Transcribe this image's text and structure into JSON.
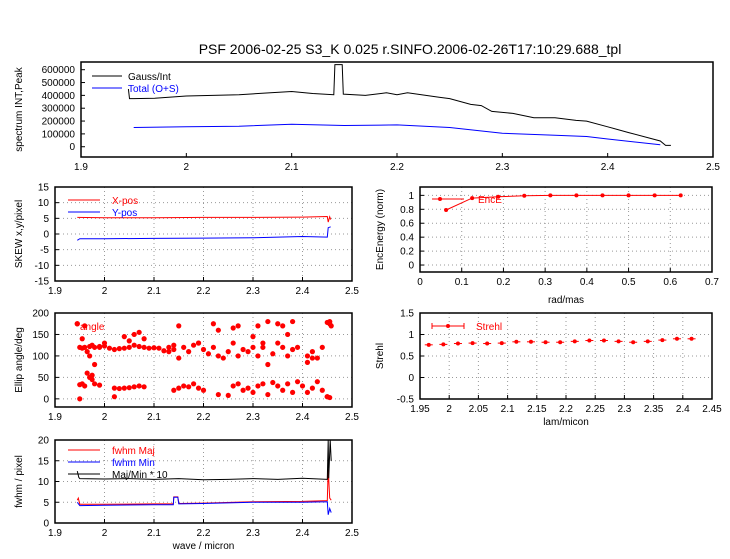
{
  "title": "PSF 2006-02-25 S3_K 0.025 r.SINFO.2006-02-26T17:10:29.688_tpl",
  "chart_data": [
    {
      "type": "line",
      "title": "",
      "xlabel": "",
      "ylabel": "spectrum INT,Peak",
      "xlim": [
        1.9,
        2.5
      ],
      "ylim": [
        -80000,
        660000
      ],
      "xticks": [
        "1.9",
        "2",
        "2.1",
        "2.2",
        "2.3",
        "2.4",
        "2.5"
      ],
      "yticks": [
        "0",
        "100000",
        "200000",
        "300000",
        "400000",
        "500000",
        "600000"
      ],
      "grid": false,
      "legend": "top-left",
      "series": [
        {
          "name": "Gauss/Int",
          "color": "#000000",
          "style": "line",
          "x": [
            1.945,
            1.946,
            1.95,
            1.97,
            2.0,
            2.05,
            2.08,
            2.1,
            2.12,
            2.14,
            2.141,
            2.148,
            2.149,
            2.17,
            2.19,
            2.2,
            2.21,
            2.24,
            2.25,
            2.27,
            2.28,
            2.29,
            2.31,
            2.33,
            2.35,
            2.37,
            2.38,
            2.4,
            2.42,
            2.45,
            2.455,
            2.46
          ],
          "y": [
            450000,
            375000,
            375000,
            378000,
            395000,
            405000,
            420000,
            430000,
            415000,
            405000,
            640000,
            640000,
            410000,
            400000,
            420000,
            405000,
            420000,
            385000,
            375000,
            330000,
            320000,
            275000,
            260000,
            225000,
            225000,
            205000,
            200000,
            155000,
            110000,
            45000,
            10000,
            10000
          ]
        },
        {
          "name": "Total (O+S)",
          "color": "#0000ff",
          "style": "line",
          "x": [
            1.95,
            2.0,
            2.05,
            2.1,
            2.15,
            2.2,
            2.25,
            2.3,
            2.35,
            2.38,
            2.4,
            2.45
          ],
          "y": [
            150000,
            155000,
            160000,
            175000,
            165000,
            170000,
            150000,
            105000,
            90000,
            80000,
            60000,
            15000
          ]
        }
      ]
    },
    {
      "type": "line",
      "xlabel": "",
      "ylabel": "SKEW x,y/pixel",
      "xlim": [
        1.9,
        2.5
      ],
      "ylim": [
        -15,
        15
      ],
      "xticks": [
        "1.9",
        "2",
        "2.1",
        "2.2",
        "2.3",
        "2.4",
        "2.5"
      ],
      "yticks": [
        "-15",
        "-10",
        "-5",
        "0",
        "5",
        "10",
        "15"
      ],
      "grid": true,
      "legend": "top-left",
      "series": [
        {
          "name": "X-pos",
          "color": "#ff0000",
          "style": "line",
          "x": [
            1.945,
            2.0,
            2.1,
            2.2,
            2.3,
            2.4,
            2.45,
            2.452,
            2.455,
            2.457
          ],
          "y": [
            5.3,
            5.2,
            5.2,
            5.3,
            5.3,
            5.4,
            5.6,
            3.8,
            5.5,
            4.6
          ]
        },
        {
          "name": "Y-pos",
          "color": "#0000ff",
          "style": "line",
          "x": [
            1.945,
            1.95,
            2.0,
            2.1,
            2.2,
            2.3,
            2.4,
            2.45,
            2.452,
            2.457
          ],
          "y": [
            -2.0,
            -1.5,
            -1.5,
            -1.4,
            -1.3,
            -1.2,
            -0.8,
            -1.0,
            2.0,
            2.3
          ]
        }
      ]
    },
    {
      "type": "line",
      "xlabel": "rad/mas",
      "ylabel": "EncEnergy (norm)",
      "xlim": [
        0,
        0.7
      ],
      "ylim": [
        -0.1,
        1.12
      ],
      "xticks": [
        "0",
        "0.1",
        "0.2",
        "0.3",
        "0.4",
        "0.5",
        "0.6",
        "0.7"
      ],
      "yticks": [
        "0",
        "0.2",
        "0.4",
        "0.6",
        "0.8",
        "1"
      ],
      "grid": true,
      "legend": "top-left",
      "series": [
        {
          "name": "EncE",
          "color": "#ff0000",
          "style": "linepoints",
          "x": [
            0.0625,
            0.125,
            0.1875,
            0.25,
            0.3125,
            0.375,
            0.4375,
            0.5,
            0.5625,
            0.625
          ],
          "y": [
            0.79,
            0.96,
            0.98,
            0.995,
            1.0,
            1.0,
            1.0,
            1.0,
            1.0,
            1.0
          ]
        }
      ]
    },
    {
      "type": "scatter",
      "xlabel": "",
      "ylabel": "Ellip angle/deg",
      "xlim": [
        1.9,
        2.5
      ],
      "ylim": [
        -19,
        200
      ],
      "xticks": [
        "1.9",
        "2",
        "2.1",
        "2.2",
        "2.3",
        "2.4",
        "2.5"
      ],
      "yticks": [
        "0",
        "50",
        "100",
        "150",
        "200"
      ],
      "grid": true,
      "legend": "top-left",
      "series": [
        {
          "name": "angle",
          "color": "#ff0000",
          "style": "points",
          "x": [
            1.945,
            1.95,
            1.955,
            1.96,
            1.965,
            1.97,
            1.975,
            1.98,
            1.99,
            2.0,
            2.01,
            2.02,
            2.03,
            2.04,
            2.05,
            2.06,
            2.07,
            2.08,
            2.09,
            2.1,
            2.11,
            2.12,
            2.13,
            2.14,
            2.15,
            2.16,
            2.17,
            2.18,
            2.19,
            2.2,
            2.21,
            2.22,
            2.23,
            2.24,
            2.25,
            2.26,
            2.27,
            2.28,
            2.29,
            2.3,
            2.31,
            2.32,
            2.33,
            2.34,
            2.35,
            2.36,
            2.37,
            2.38,
            2.39,
            2.41,
            2.42,
            2.43,
            2.44,
            2.45,
            2.455,
            1.95,
            1.955,
            1.96,
            1.965,
            1.97,
            1.975,
            1.98,
            1.99,
            2.02,
            2.03,
            2.04,
            2.05,
            2.06,
            2.07,
            2.08,
            2.14,
            2.15,
            2.16,
            2.17,
            2.18,
            2.19,
            2.2,
            2.23,
            2.25,
            2.26,
            2.27,
            2.28,
            2.29,
            2.3,
            2.31,
            2.32,
            2.33,
            2.34,
            2.35,
            2.36,
            2.37,
            2.38,
            2.39,
            2.4,
            2.41,
            2.42,
            2.43,
            2.44,
            2.45,
            2.455,
            1.945,
            1.95,
            1.955,
            1.96,
            1.97,
            1.975,
            1.98,
            1.99,
            2.0,
            2.02,
            2.04,
            2.05,
            2.06,
            2.07,
            2.08,
            2.13,
            2.14,
            2.15,
            2.19,
            2.22,
            2.23,
            2.26,
            2.27,
            2.3,
            2.31,
            2.32,
            2.33,
            2.35,
            2.36,
            2.37,
            2.38,
            2.41,
            2.42,
            2.45,
            2.455,
            2.458
          ],
          "y": [
            175,
            120,
            118,
            120,
            110,
            122,
            125,
            120,
            122,
            123,
            118,
            115,
            117,
            118,
            120,
            125,
            122,
            120,
            118,
            119,
            118,
            112,
            110,
            115,
            95,
            120,
            110,
            125,
            130,
            115,
            105,
            120,
            100,
            95,
            110,
            130,
            100,
            115,
            110,
            120,
            100,
            120,
            80,
            105,
            130,
            120,
            100,
            115,
            120,
            100,
            110,
            95,
            120,
            178,
            175,
            33,
            35,
            30,
            60,
            50,
            45,
            35,
            32,
            25,
            24,
            25,
            26,
            28,
            30,
            28,
            20,
            25,
            30,
            28,
            35,
            25,
            20,
            10,
            8,
            30,
            35,
            20,
            25,
            15,
            30,
            35,
            10,
            38,
            30,
            20,
            35,
            15,
            40,
            30,
            15,
            25,
            40,
            20,
            5,
            3,
            175,
            0,
            140,
            170,
            100,
            55,
            80,
            120,
            130,
            5,
            145,
            135,
            150,
            155,
            140,
            120,
            125,
            170,
            130,
            175,
            160,
            165,
            170,
            145,
            170,
            130,
            180,
            175,
            170,
            150,
            180,
            85,
            95,
            5,
            180,
            170
          ]
        }
      ]
    },
    {
      "type": "scatter",
      "xlabel": "lam/micon",
      "ylabel": "Strehl",
      "xlim": [
        1.95,
        2.45
      ],
      "ylim": [
        -0.5,
        1.5
      ],
      "xticks": [
        "1.95",
        "2",
        "2.05",
        "2.1",
        "2.15",
        "2.2",
        "2.25",
        "2.3",
        "2.35",
        "2.4",
        "2.45"
      ],
      "yticks": [
        "-0.5",
        "0",
        "0.5",
        "1",
        "1.5"
      ],
      "grid": true,
      "legend": "top-left",
      "series": [
        {
          "name": "Strehl",
          "color": "#ff0000",
          "style": "errpoints",
          "x": [
            1.965,
            1.99,
            2.015,
            2.04,
            2.065,
            2.09,
            2.115,
            2.14,
            2.165,
            2.19,
            2.215,
            2.24,
            2.265,
            2.29,
            2.315,
            2.34,
            2.365,
            2.39,
            2.415
          ],
          "y": [
            0.76,
            0.77,
            0.79,
            0.8,
            0.79,
            0.8,
            0.83,
            0.83,
            0.82,
            0.82,
            0.84,
            0.86,
            0.86,
            0.84,
            0.82,
            0.84,
            0.87,
            0.9,
            0.9
          ]
        }
      ]
    },
    {
      "type": "line",
      "xlabel": "wave / micron",
      "ylabel": "fwhm / pixel",
      "xlim": [
        1.9,
        2.5
      ],
      "ylim": [
        0,
        20
      ],
      "xticks": [
        "1.9",
        "2",
        "2.1",
        "2.2",
        "2.3",
        "2.4",
        "2.5"
      ],
      "yticks": [
        "0",
        "5",
        "10",
        "15",
        "20"
      ],
      "grid": true,
      "legend": "top-left",
      "series": [
        {
          "name": "fwhm Maj",
          "color": "#ff0000",
          "style": "line",
          "x": [
            1.945,
            1.947,
            1.95,
            2.0,
            2.1,
            2.139,
            2.14,
            2.148,
            2.15,
            2.2,
            2.3,
            2.4,
            2.45,
            2.452,
            2.455,
            2.458
          ],
          "y": [
            5.5,
            6.0,
            4.5,
            4.5,
            4.6,
            4.6,
            6.3,
            6.3,
            4.7,
            4.8,
            5.1,
            5.2,
            5.4,
            13.0,
            6.0,
            5.5
          ]
        },
        {
          "name": "fwhm Min",
          "color": "#0000ff",
          "style": "line",
          "x": [
            1.945,
            1.95,
            2.0,
            2.1,
            2.139,
            2.14,
            2.148,
            2.15,
            2.2,
            2.3,
            2.4,
            2.45,
            2.452,
            2.455,
            2.458
          ],
          "y": [
            5.0,
            4.2,
            4.3,
            4.4,
            4.4,
            6.2,
            6.2,
            4.6,
            4.7,
            5.0,
            5.0,
            5.1,
            2.0,
            3.5,
            2.5
          ]
        },
        {
          "name": "Maj/Min * 10",
          "color": "#000000",
          "style": "line",
          "x": [
            1.945,
            1.948,
            1.95,
            2.0,
            2.05,
            2.1,
            2.15,
            2.2,
            2.25,
            2.3,
            2.35,
            2.4,
            2.45,
            2.452,
            2.453,
            2.456,
            2.458
          ],
          "y": [
            12.5,
            11.0,
            10.7,
            10.6,
            10.7,
            10.5,
            10.7,
            10.4,
            10.5,
            10.7,
            10.5,
            10.8,
            10.5,
            20,
            10.8,
            20,
            15
          ]
        }
      ]
    }
  ]
}
